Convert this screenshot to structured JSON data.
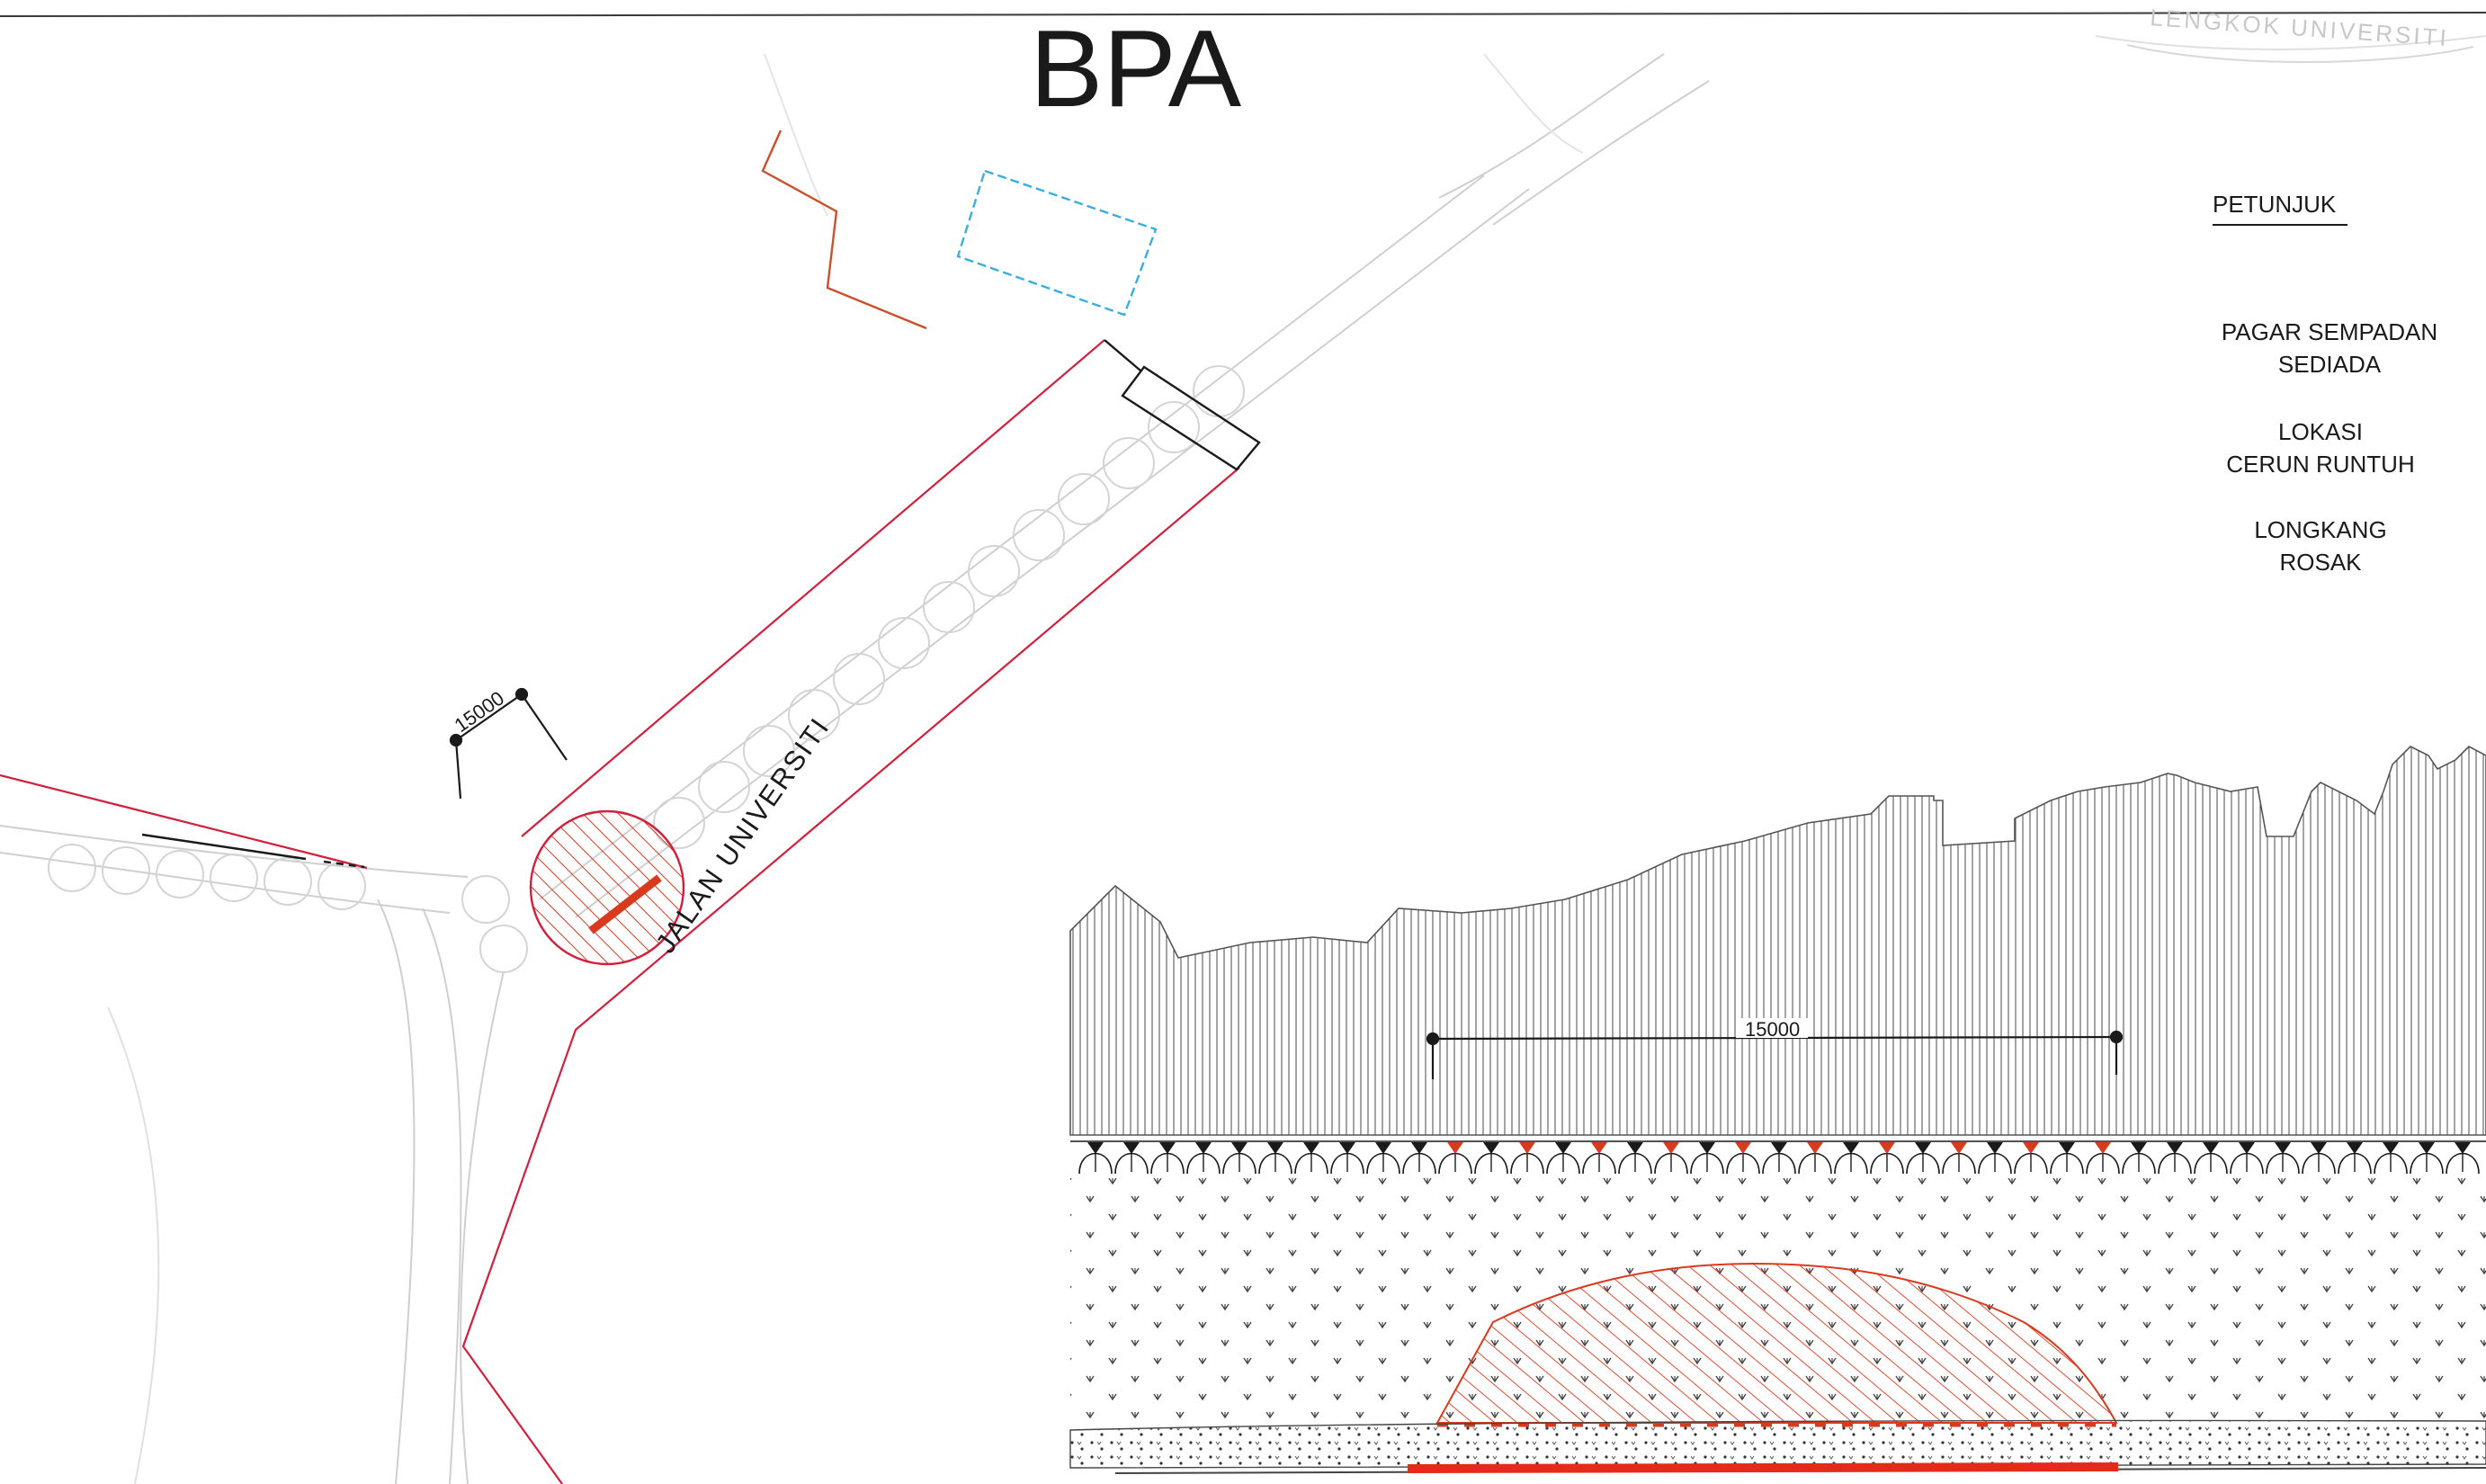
{
  "title": "BPA",
  "stamp": "LENGKOK UNIVERSITI",
  "road_label": "JALAN UNIVERSITI",
  "dimensions": {
    "plan": "15000",
    "section": "15000"
  },
  "legend": {
    "heading": "PETUNJUK",
    "items": [
      {
        "line1": "PAGAR SEMPADAN",
        "line2": "SEDIADA"
      },
      {
        "line1": "LOKASI",
        "line2": "CERUN RUNTUH"
      },
      {
        "line1": "LONGKANG",
        "line2": "ROSAK"
      }
    ]
  },
  "colors": {
    "boundary": "#d21f3c",
    "failure_zone": "#d93a1e",
    "building_outline": "#3aaee0",
    "old_fence": "#c9502a",
    "ink": "#1a1a1a",
    "faint": "#c6c6c6"
  }
}
